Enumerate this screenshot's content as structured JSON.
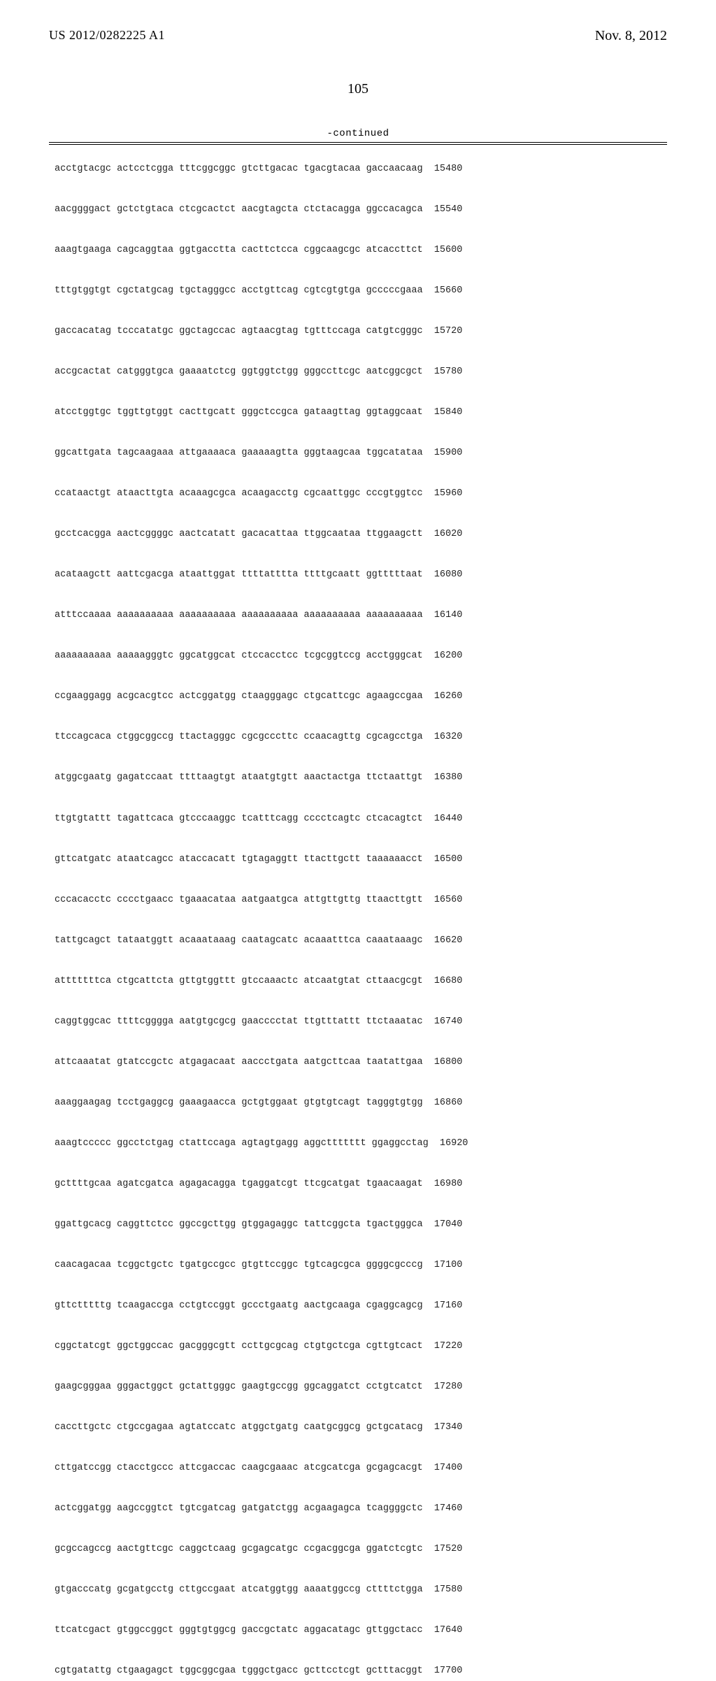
{
  "header": {
    "app_number": "US 2012/0282225 A1",
    "pub_date": "Nov. 8, 2012"
  },
  "page_number": "105",
  "continued_label": "-continued",
  "sequence_rows": [
    {
      "b1": "acctgtacgc",
      "b2": "actcctcgga",
      "b3": "tttcggcggc",
      "b4": "gtcttgacac",
      "b5": "tgacgtacaa",
      "b6": "gaccaacaag",
      "pos": "15480"
    },
    {
      "b1": "aacggggact",
      "b2": "gctctgtaca",
      "b3": "ctcgcactct",
      "b4": "aacgtagcta",
      "b5": "ctctacagga",
      "b6": "ggccacagca",
      "pos": "15540"
    },
    {
      "b1": "aaagtgaaga",
      "b2": "cagcaggtaa",
      "b3": "ggtgacctta",
      "b4": "cacttctcca",
      "b5": "cggcaagcgc",
      "b6": "atcaccttct",
      "pos": "15600"
    },
    {
      "b1": "tttgtggtgt",
      "b2": "cgctatgcag",
      "b3": "tgctagggcc",
      "b4": "acctgttcag",
      "b5": "cgtcgtgtga",
      "b6": "gcccccgaaa",
      "pos": "15660"
    },
    {
      "b1": "gaccacatag",
      "b2": "tcccatatgc",
      "b3": "ggctagccac",
      "b4": "agtaacgtag",
      "b5": "tgtttccaga",
      "b6": "catgtcgggc",
      "pos": "15720"
    },
    {
      "b1": "accgcactat",
      "b2": "catgggtgca",
      "b3": "gaaaatctcg",
      "b4": "ggtggtctgg",
      "b5": "gggccttcgc",
      "b6": "aatcggcgct",
      "pos": "15780"
    },
    {
      "b1": "atcctggtgc",
      "b2": "tggttgtggt",
      "b3": "cacttgcatt",
      "b4": "gggctccgca",
      "b5": "gataagttag",
      "b6": "ggtaggcaat",
      "pos": "15840"
    },
    {
      "b1": "ggcattgata",
      "b2": "tagcaagaaa",
      "b3": "attgaaaaca",
      "b4": "gaaaaagtta",
      "b5": "gggtaagcaa",
      "b6": "tggcatataa",
      "pos": "15900"
    },
    {
      "b1": "ccataactgt",
      "b2": "ataacttgta",
      "b3": "acaaagcgca",
      "b4": "acaagacctg",
      "b5": "cgcaattggc",
      "b6": "cccgtggtcc",
      "pos": "15960"
    },
    {
      "b1": "gcctcacgga",
      "b2": "aactcggggc",
      "b3": "aactcatatt",
      "b4": "gacacattaa",
      "b5": "ttggcaataa",
      "b6": "ttggaagctt",
      "pos": "16020"
    },
    {
      "b1": "acataagctt",
      "b2": "aattcgacga",
      "b3": "ataattggat",
      "b4": "ttttatttta",
      "b5": "ttttgcaatt",
      "b6": "ggtttttaat",
      "pos": "16080"
    },
    {
      "b1": "atttccaaaa",
      "b2": "aaaaaaaaaa",
      "b3": "aaaaaaaaaa",
      "b4": "aaaaaaaaaa",
      "b5": "aaaaaaaaaa",
      "b6": "aaaaaaaaaa",
      "pos": "16140"
    },
    {
      "b1": "aaaaaaaaaa",
      "b2": "aaaaagggtc",
      "b3": "ggcatggcat",
      "b4": "ctccacctcc",
      "b5": "tcgcggtccg",
      "b6": "acctgggcat",
      "pos": "16200"
    },
    {
      "b1": "ccgaaggagg",
      "b2": "acgcacgtcc",
      "b3": "actcggatgg",
      "b4": "ctaagggagc",
      "b5": "ctgcattcgc",
      "b6": "agaagccgaa",
      "pos": "16260"
    },
    {
      "b1": "ttccagcaca",
      "b2": "ctggcggccg",
      "b3": "ttactagggc",
      "b4": "cgcgcccttc",
      "b5": "ccaacagttg",
      "b6": "cgcagcctga",
      "pos": "16320"
    },
    {
      "b1": "atggcgaatg",
      "b2": "gagatccaat",
      "b3": "ttttaagtgt",
      "b4": "ataatgtgtt",
      "b5": "aaactactga",
      "b6": "ttctaattgt",
      "pos": "16380"
    },
    {
      "b1": "ttgtgtattt",
      "b2": "tagattcaca",
      "b3": "gtcccaaggc",
      "b4": "tcatttcagg",
      "b5": "cccctcagtc",
      "b6": "ctcacagtct",
      "pos": "16440"
    },
    {
      "b1": "gttcatgatc",
      "b2": "ataatcagcc",
      "b3": "ataccacatt",
      "b4": "tgtagaggtt",
      "b5": "ttacttgctt",
      "b6": "taaaaaacct",
      "pos": "16500"
    },
    {
      "b1": "cccacacctc",
      "b2": "cccctgaacc",
      "b3": "tgaaacataa",
      "b4": "aatgaatgca",
      "b5": "attgttgttg",
      "b6": "ttaacttgtt",
      "pos": "16560"
    },
    {
      "b1": "tattgcagct",
      "b2": "tataatggtt",
      "b3": "acaaataaag",
      "b4": "caatagcatc",
      "b5": "acaaatttca",
      "b6": "caaataaagc",
      "pos": "16620"
    },
    {
      "b1": "atttttttca",
      "b2": "ctgcattcta",
      "b3": "gttgtggttt",
      "b4": "gtccaaactc",
      "b5": "atcaatgtat",
      "b6": "cttaacgcgt",
      "pos": "16680"
    },
    {
      "b1": "caggtggcac",
      "b2": "ttttcgggga",
      "b3": "aatgtgcgcg",
      "b4": "gaacccctat",
      "b5": "ttgtttattt",
      "b6": "ttctaaatac",
      "pos": "16740"
    },
    {
      "b1": "attcaaatat",
      "b2": "gtatccgctc",
      "b3": "atgagacaat",
      "b4": "aaccctgata",
      "b5": "aatgcttcaa",
      "b6": "taatattgaa",
      "pos": "16800"
    },
    {
      "b1": "aaaggaagag",
      "b2": "tcctgaggcg",
      "b3": "gaaagaacca",
      "b4": "gctgtggaat",
      "b5": "gtgtgtcagt",
      "b6": "tagggtgtgg",
      "pos": "16860"
    },
    {
      "b1": "aaagtccccc",
      "b2": "ggcctctgag",
      "b3": "ctattccaga",
      "b4": "agtagtgagg",
      "b5": "aggcttttttt",
      "b6": "ggaggcctag",
      "pos": "16920"
    },
    {
      "b1": "gcttttgcaa",
      "b2": "agatcgatca",
      "b3": "agagacagga",
      "b4": "tgaggatcgt",
      "b5": "ttcgcatgat",
      "b6": "tgaacaagat",
      "pos": "16980"
    },
    {
      "b1": "ggattgcacg",
      "b2": "caggttctcc",
      "b3": "ggccgcttgg",
      "b4": "gtggagaggc",
      "b5": "tattcggcta",
      "b6": "tgactgggca",
      "pos": "17040"
    },
    {
      "b1": "caacagacaa",
      "b2": "tcggctgctc",
      "b3": "tgatgccgcc",
      "b4": "gtgttccggc",
      "b5": "tgtcagcgca",
      "b6": "ggggcgcccg",
      "pos": "17100"
    },
    {
      "b1": "gttctttttg",
      "b2": "tcaagaccga",
      "b3": "cctgtccggt",
      "b4": "gccctgaatg",
      "b5": "aactgcaaga",
      "b6": "cgaggcagcg",
      "pos": "17160"
    },
    {
      "b1": "cggctatcgt",
      "b2": "ggctggccac",
      "b3": "gacgggcgtt",
      "b4": "ccttgcgcag",
      "b5": "ctgtgctcga",
      "b6": "cgttgtcact",
      "pos": "17220"
    },
    {
      "b1": "gaagcgggaa",
      "b2": "gggactggct",
      "b3": "gctattgggc",
      "b4": "gaagtgccgg",
      "b5": "ggcaggatct",
      "b6": "cctgtcatct",
      "pos": "17280"
    },
    {
      "b1": "caccttgctc",
      "b2": "ctgccgagaa",
      "b3": "agtatccatc",
      "b4": "atggctgatg",
      "b5": "caatgcggcg",
      "b6": "gctgcatacg",
      "pos": "17340"
    },
    {
      "b1": "cttgatccgg",
      "b2": "ctacctgccc",
      "b3": "attcgaccac",
      "b4": "caagcgaaac",
      "b5": "atcgcatcga",
      "b6": "gcgagcacgt",
      "pos": "17400"
    },
    {
      "b1": "actcggatgg",
      "b2": "aagccggtct",
      "b3": "tgtcgatcag",
      "b4": "gatgatctgg",
      "b5": "acgaagagca",
      "b6": "tcaggggctc",
      "pos": "17460"
    },
    {
      "b1": "gcgccagccg",
      "b2": "aactgttcgc",
      "b3": "caggctcaag",
      "b4": "gcgagcatgc",
      "b5": "ccgacggcga",
      "b6": "ggatctcgtc",
      "pos": "17520"
    },
    {
      "b1": "gtgacccatg",
      "b2": "gcgatgcctg",
      "b3": "cttgccgaat",
      "b4": "atcatggtgg",
      "b5": "aaaatggccg",
      "b6": "cttttctgga",
      "pos": "17580"
    },
    {
      "b1": "ttcatcgact",
      "b2": "gtggccggct",
      "b3": "gggtgtggcg",
      "b4": "gaccgctatc",
      "b5": "aggacatagc",
      "b6": "gttggctacc",
      "pos": "17640"
    },
    {
      "b1": "cgtgatattg",
      "b2": "ctgaagagct",
      "b3": "tggcggcgaa",
      "b4": "tgggctgacc",
      "b5": "gcttcctcgt",
      "b6": "gctttacggt",
      "pos": "17700"
    }
  ]
}
